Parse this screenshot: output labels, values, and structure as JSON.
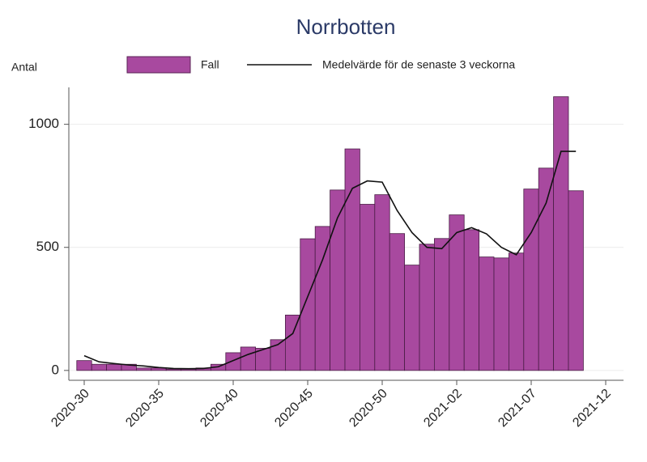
{
  "chart_data": {
    "type": "bar+line",
    "title": "Norrbotten",
    "y_label": "Antal",
    "categories": [
      "2020-30",
      null,
      null,
      null,
      null,
      "2020-35",
      null,
      null,
      null,
      null,
      "2020-40",
      null,
      null,
      null,
      null,
      "2020-45",
      null,
      null,
      null,
      null,
      "2020-50",
      null,
      null,
      null,
      null,
      "2021-02",
      null,
      null,
      null,
      null,
      "2021-07",
      null,
      null,
      null,
      null,
      "2021-12"
    ],
    "series": [
      {
        "name": "Fall",
        "kind": "bar",
        "color": "#a8499f",
        "values": [
          40,
          25,
          25,
          25,
          10,
          10,
          5,
          5,
          10,
          25,
          72,
          95,
          90,
          125,
          225,
          535,
          585,
          733,
          900,
          675,
          714,
          556,
          428,
          513,
          536,
          632,
          572,
          461,
          457,
          477,
          737,
          822,
          1112,
          730,
          null,
          null
        ]
      },
      {
        "name": "Medelvärde för de senaste 3 veckorna",
        "kind": "line",
        "color": "#111111",
        "values": [
          60,
          35,
          28,
          22,
          18,
          12,
          8,
          7,
          8,
          15,
          40,
          65,
          85,
          105,
          150,
          300,
          450,
          620,
          740,
          770,
          765,
          650,
          560,
          500,
          495,
          560,
          580,
          555,
          500,
          470,
          560,
          680,
          890,
          890,
          null,
          null
        ]
      }
    ],
    "ylim": [
      -40,
      1150
    ],
    "yticks": [
      0,
      500,
      1000
    ],
    "grid": true
  }
}
